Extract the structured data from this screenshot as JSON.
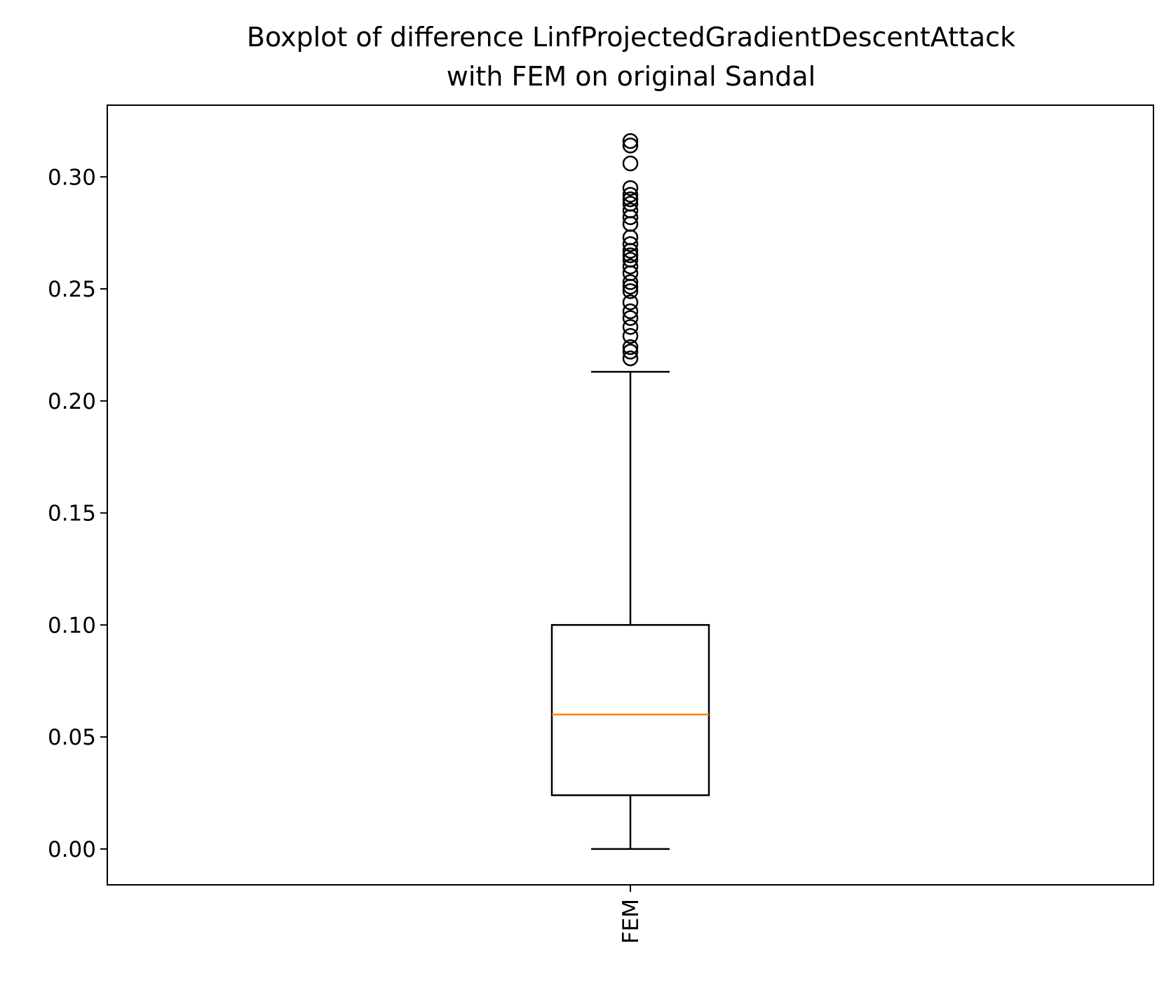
{
  "chart_data": {
    "type": "boxplot",
    "title": "Boxplot of difference LinfProjectedGradientDescentAttack\nwith FEM on original Sandal",
    "xlabel": "",
    "ylabel": "",
    "ylim": [
      -0.016,
      0.332
    ],
    "yticks": [
      "0.00",
      "0.05",
      "0.10",
      "0.15",
      "0.20",
      "0.25",
      "0.30"
    ],
    "grid": false,
    "categories": [
      "FEM"
    ],
    "colors": {
      "box": "#000000",
      "median": "#ff7f0e",
      "flier": "#000000",
      "background": "#ffffff"
    },
    "series": [
      {
        "category": "FEM",
        "whisker_low": 0.0,
        "q1": 0.024,
        "median": 0.06,
        "q3": 0.1,
        "whisker_high": 0.213,
        "outliers": [
          0.219,
          0.222,
          0.224,
          0.229,
          0.233,
          0.237,
          0.24,
          0.244,
          0.249,
          0.251,
          0.253,
          0.257,
          0.26,
          0.263,
          0.265,
          0.267,
          0.27,
          0.273,
          0.279,
          0.282,
          0.285,
          0.288,
          0.29,
          0.292,
          0.295,
          0.306,
          0.314,
          0.316
        ]
      }
    ]
  }
}
